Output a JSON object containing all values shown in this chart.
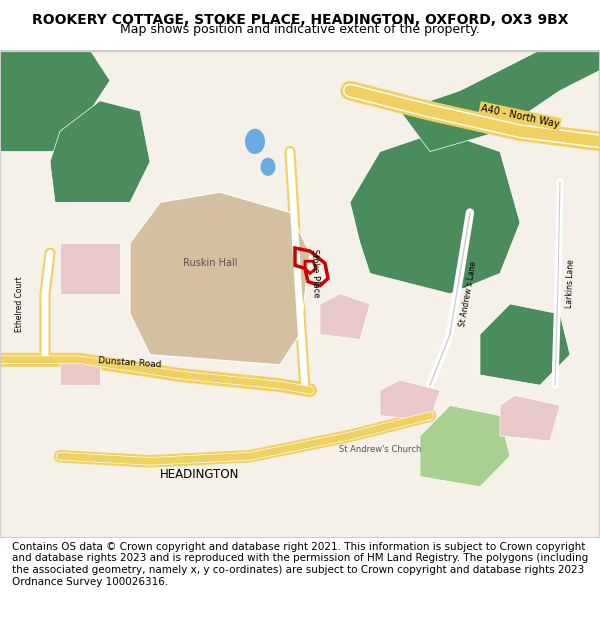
{
  "title": "ROOKERY COTTAGE, STOKE PLACE, HEADINGTON, OXFORD, OX3 9BX",
  "subtitle": "Map shows position and indicative extent of the property.",
  "footer": "Contains OS data © Crown copyright and database right 2021. This information is subject to Crown copyright and database rights 2023 and is reproduced with the permission of HM Land Registry. The polygons (including the associated geometry, namely x, y co-ordinates) are subject to Crown copyright and database rights 2023 Ordnance Survey 100026316.",
  "map_bg": "#f5f0e8",
  "road_yellow": "#f0d060",
  "road_light": "#ffffff",
  "green_dark": "#4a8c5c",
  "green_light": "#a8d090",
  "green_bright": "#7ab87a",
  "pink_area": "#e8c8c8",
  "beige_area": "#d4c0a0",
  "blue_water": "#8ab8d8",
  "red_plot": "#cc0000",
  "border_color": "#cccccc",
  "title_fontsize": 10,
  "subtitle_fontsize": 9,
  "footer_fontsize": 7.5
}
